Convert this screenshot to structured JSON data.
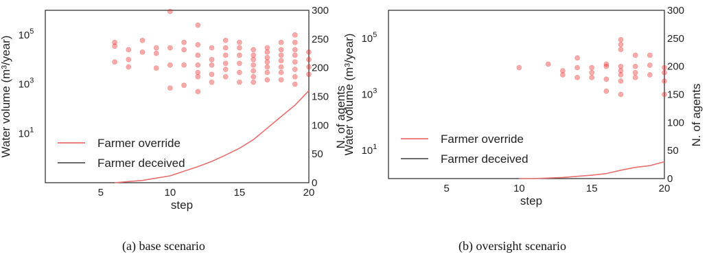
{
  "captions": [
    "(a) base scenario",
    "(b) oversight scenario"
  ],
  "colors": {
    "override": "#ea6e6e",
    "deceived": "#555555",
    "points": "#e8231f"
  },
  "chart_data": [
    {
      "type": "scatter",
      "xlabel": "step",
      "ylabel": "Water volume (m³/year)",
      "y2label": "N. of agents",
      "xlim": [
        1,
        20
      ],
      "ylim_log": [
        0.1,
        1000000
      ],
      "y2lim": [
        0,
        300
      ],
      "x_ticks": [
        "5",
        "10",
        "15",
        "20"
      ],
      "x_tick_values": [
        5,
        10,
        15,
        20
      ],
      "y_tick_values": [
        10,
        1000,
        100000
      ],
      "y_tick_labels": [
        {
          "base": "10",
          "exp": "1"
        },
        {
          "base": "10",
          "exp": "3"
        },
        {
          "base": "10",
          "exp": "5"
        }
      ],
      "y2_ticks": [
        "0",
        "50",
        "100",
        "150",
        "200",
        "250",
        "300"
      ],
      "y2_tick_values": [
        0,
        50,
        100,
        150,
        200,
        250,
        300
      ],
      "legend": [
        "Farmer override",
        "Farmer deceived"
      ],
      "legend_loc": "lower-left",
      "series": [
        {
          "name": "Farmer override",
          "type": "line",
          "axis": "right",
          "x": [
            6,
            7,
            8,
            9,
            10,
            11,
            12,
            13,
            14,
            15,
            16,
            17,
            18,
            19,
            20
          ],
          "values": [
            0,
            2,
            4,
            8,
            12,
            20,
            28,
            37,
            48,
            60,
            75,
            95,
            115,
            135,
            160
          ]
        },
        {
          "name": "Farmer deceived",
          "type": "line",
          "axis": "right",
          "x": [],
          "values": []
        },
        {
          "type": "scatter",
          "axis": "left",
          "points": [
            [
              6,
              50000
            ],
            [
              6,
              35000
            ],
            [
              6,
              8000
            ],
            [
              7,
              25000
            ],
            [
              7,
              10000
            ],
            [
              7,
              5000
            ],
            [
              8,
              60000
            ],
            [
              8,
              20000
            ],
            [
              9,
              30000
            ],
            [
              9,
              18000
            ],
            [
              9,
              4500
            ],
            [
              10,
              900000
            ],
            [
              10,
              30000
            ],
            [
              10,
              6000
            ],
            [
              10,
              700
            ],
            [
              11,
              50000
            ],
            [
              11,
              25000
            ],
            [
              11,
              6000
            ],
            [
              11,
              900
            ],
            [
              12,
              250000
            ],
            [
              12,
              40000
            ],
            [
              12,
              15000
            ],
            [
              12,
              6000
            ],
            [
              12,
              3000
            ],
            [
              12,
              2000
            ],
            [
              12,
              500
            ],
            [
              13,
              30000
            ],
            [
              13,
              10000
            ],
            [
              13,
              6000
            ],
            [
              13,
              2500
            ],
            [
              13,
              1200
            ],
            [
              14,
              60000
            ],
            [
              14,
              30000
            ],
            [
              14,
              15000
            ],
            [
              14,
              7000
            ],
            [
              14,
              4000
            ],
            [
              14,
              2000
            ],
            [
              15,
              50000
            ],
            [
              15,
              30000
            ],
            [
              15,
              15000
            ],
            [
              15,
              7000
            ],
            [
              15,
              3000
            ],
            [
              15,
              1200
            ],
            [
              16,
              25000
            ],
            [
              16,
              15000
            ],
            [
              16,
              10000
            ],
            [
              16,
              6000
            ],
            [
              16,
              3500
            ],
            [
              16,
              2000
            ],
            [
              16,
              1200
            ],
            [
              17,
              30000
            ],
            [
              17,
              20000
            ],
            [
              17,
              12000
            ],
            [
              17,
              8000
            ],
            [
              17,
              5000
            ],
            [
              17,
              3000
            ],
            [
              17,
              1500
            ],
            [
              18,
              50000
            ],
            [
              18,
              25000
            ],
            [
              18,
              15000
            ],
            [
              18,
              9000
            ],
            [
              18,
              5000
            ],
            [
              18,
              3000
            ],
            [
              18,
              1500
            ],
            [
              19,
              100000
            ],
            [
              19,
              50000
            ],
            [
              19,
              25000
            ],
            [
              19,
              15000
            ],
            [
              19,
              8000
            ],
            [
              19,
              4000
            ],
            [
              19,
              2000
            ],
            [
              19,
              1000
            ],
            [
              20,
              20000
            ],
            [
              20,
              10000
            ],
            [
              20,
              5000
            ],
            [
              20,
              2500
            ]
          ]
        }
      ]
    },
    {
      "type": "scatter",
      "xlabel": "step",
      "ylabel": "Water volume (m³/year)",
      "y2label": "N. of agents",
      "xlim": [
        1,
        20
      ],
      "ylim_log": [
        1,
        1000000
      ],
      "y2lim": [
        0,
        300
      ],
      "x_ticks": [
        "5",
        "10",
        "15",
        "20"
      ],
      "x_tick_values": [
        5,
        10,
        15,
        20
      ],
      "y_tick_values": [
        10,
        1000,
        100000
      ],
      "y_tick_labels": [
        {
          "base": "10",
          "exp": "1"
        },
        {
          "base": "10",
          "exp": "3"
        },
        {
          "base": "10",
          "exp": "5"
        }
      ],
      "y2_ticks": [
        "0",
        "50",
        "100",
        "150",
        "200",
        "250",
        "300"
      ],
      "y2_tick_values": [
        0,
        50,
        100,
        150,
        200,
        250,
        300
      ],
      "legend": [
        "Farmer override",
        "Farmer deceived"
      ],
      "legend_loc": "lower-left",
      "series": [
        {
          "name": "Farmer override",
          "type": "line",
          "axis": "right",
          "x": [
            10,
            11,
            12,
            13,
            14,
            15,
            16,
            17,
            18,
            19,
            20
          ],
          "values": [
            0,
            0,
            1,
            2,
            4,
            6,
            9,
            15,
            20,
            23,
            30
          ]
        },
        {
          "name": "Farmer deceived",
          "type": "line",
          "axis": "right",
          "x": [],
          "values": []
        },
        {
          "type": "scatter",
          "axis": "left",
          "points": [
            [
              10,
              9000
            ],
            [
              12,
              12000
            ],
            [
              13,
              7000
            ],
            [
              13,
              5000
            ],
            [
              14,
              20000
            ],
            [
              14,
              9000
            ],
            [
              14,
              4000
            ],
            [
              15,
              9000
            ],
            [
              15,
              6000
            ],
            [
              15,
              4000
            ],
            [
              16,
              12000
            ],
            [
              16,
              10000
            ],
            [
              16,
              3500
            ],
            [
              16,
              1300
            ],
            [
              17,
              90000
            ],
            [
              17,
              60000
            ],
            [
              17,
              40000
            ],
            [
              17,
              10000
            ],
            [
              17,
              7000
            ],
            [
              17,
              5000
            ],
            [
              17,
              3000
            ],
            [
              17,
              1000
            ],
            [
              18,
              25000
            ],
            [
              18,
              10000
            ],
            [
              18,
              6000
            ],
            [
              18,
              4000
            ],
            [
              19,
              25000
            ],
            [
              19,
              11000
            ],
            [
              19,
              5000
            ],
            [
              20,
              9000
            ],
            [
              20,
              6000
            ],
            [
              20,
              3000
            ],
            [
              20,
              1000
            ]
          ]
        }
      ]
    }
  ]
}
